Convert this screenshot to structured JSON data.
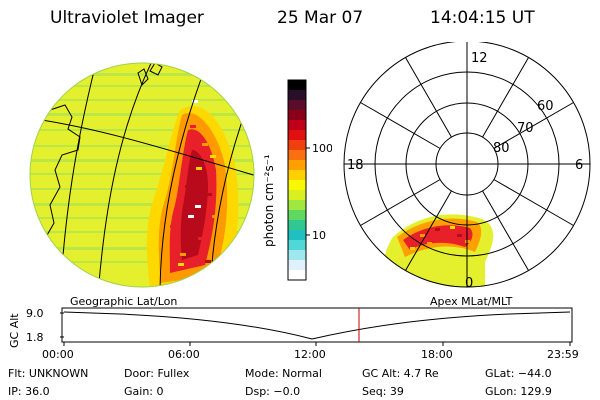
{
  "header": {
    "instrument": "Ultraviolet Imager",
    "date": "25 Mar 07",
    "time": "14:04:15 UT"
  },
  "colorbar": {
    "unit_label": "photon cm⁻²s⁻¹",
    "ticks": [
      "100",
      "10"
    ],
    "colors": [
      "#000000",
      "#2a0f2a",
      "#5a0c2a",
      "#8a0018",
      "#c0001a",
      "#e01010",
      "#f04010",
      "#f87010",
      "#ffa000",
      "#ffd000",
      "#f8f800",
      "#d8f020",
      "#a0e840",
      "#60d860",
      "#30c890",
      "#20c0c0",
      "#50d8d8",
      "#a0e8f0",
      "#e0f0ff",
      "#ffffff"
    ]
  },
  "polar": {
    "mlt_labels": {
      "top": "12",
      "left": "18",
      "right": "6",
      "bottom": "0"
    },
    "lat_labels": [
      "60",
      "70",
      "80"
    ]
  },
  "map_labels": {
    "left": "Geographic Lat/Lon",
    "right": "Apex MLat/MLT"
  },
  "timeline": {
    "ylabel": "GC Alt",
    "yticks": [
      "9.0",
      "1.8"
    ],
    "xticks": [
      "00:00",
      "06:00",
      "12:00",
      "18:00",
      "23:59"
    ],
    "current_marker_color": "#c00000"
  },
  "info": {
    "flt": "Flt: UNKNOWN",
    "door": "Door: Fullex",
    "mode": "Mode: Normal",
    "gcalt": "GC Alt: 4.7 Re",
    "glat": "GLat: −44.0",
    "ip": "IP: 36.0",
    "gain": "Gain:  0",
    "dsp": "Dsp:   −0.0",
    "seq": "Seq: 39",
    "glon": "GLon: 129.9"
  }
}
